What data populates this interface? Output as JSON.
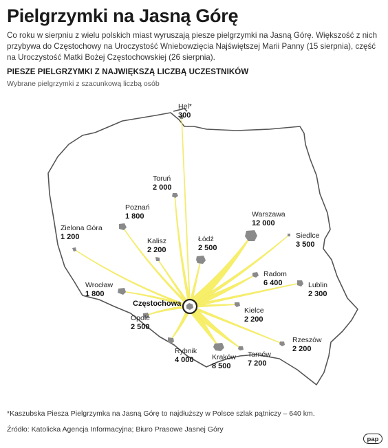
{
  "title": "Pielgrzymki na Jasną Górę",
  "lead": "Co roku w sierpniu z wielu polskich miast wyruszają piesze pielgrzymki na Jasną Górę. Większość z nich przybywa do Częstochowy na Uroczystość Wniebowzięcia Najświętszej Marii Panny (15 sierpnia), część na Uroczystość Matki Bożej Częstochowskiej (26 sierpnia).",
  "subhead": "PIESZE PIELGRZYMKI Z NAJWIĘKSZĄ LICZBĄ UCZESTNIKÓW",
  "subtitle": "Wybrane pielgrzymki z szacunkową liczbą osób",
  "hub": {
    "name": "Częstochowa"
  },
  "cities": [
    {
      "name": "Hel*",
      "value": "300"
    },
    {
      "name": "Toruń",
      "value": "2 000"
    },
    {
      "name": "Poznań",
      "value": "1 800"
    },
    {
      "name": "Zielona Góra",
      "value": "1 200"
    },
    {
      "name": "Kalisz",
      "value": "2 200"
    },
    {
      "name": "Łódź",
      "value": "2 500"
    },
    {
      "name": "Warszawa",
      "value": "12 000"
    },
    {
      "name": "Siedlce",
      "value": "3 500"
    },
    {
      "name": "Radom",
      "value": "6 400"
    },
    {
      "name": "Lublin",
      "value": "2 300"
    },
    {
      "name": "Wrocław",
      "value": "1 800"
    },
    {
      "name": "Kielce",
      "value": "2 200"
    },
    {
      "name": "Opole",
      "value": "2 500"
    },
    {
      "name": "Rzeszów",
      "value": "2 200"
    },
    {
      "name": "Rybnik",
      "value": "4 000"
    },
    {
      "name": "Kraków",
      "value": "8 500"
    },
    {
      "name": "Tarnów",
      "value": "7 200"
    }
  ],
  "footnote": "*Kaszubska Piesza Pielgrzymka na Jasną Górę to najdłuższy w Polsce szlak pątniczy – 640 km.",
  "source": "Źródło: Katolicka Agencja Informacyjna; Biuro Prasowe Jasnej Góry",
  "logo_text": "pap",
  "colors": {
    "route": "#f7ef6a",
    "route_dark": "#ede45a",
    "city": "#8a8a8a",
    "border": "#555555",
    "hub_ring": "#222222"
  }
}
